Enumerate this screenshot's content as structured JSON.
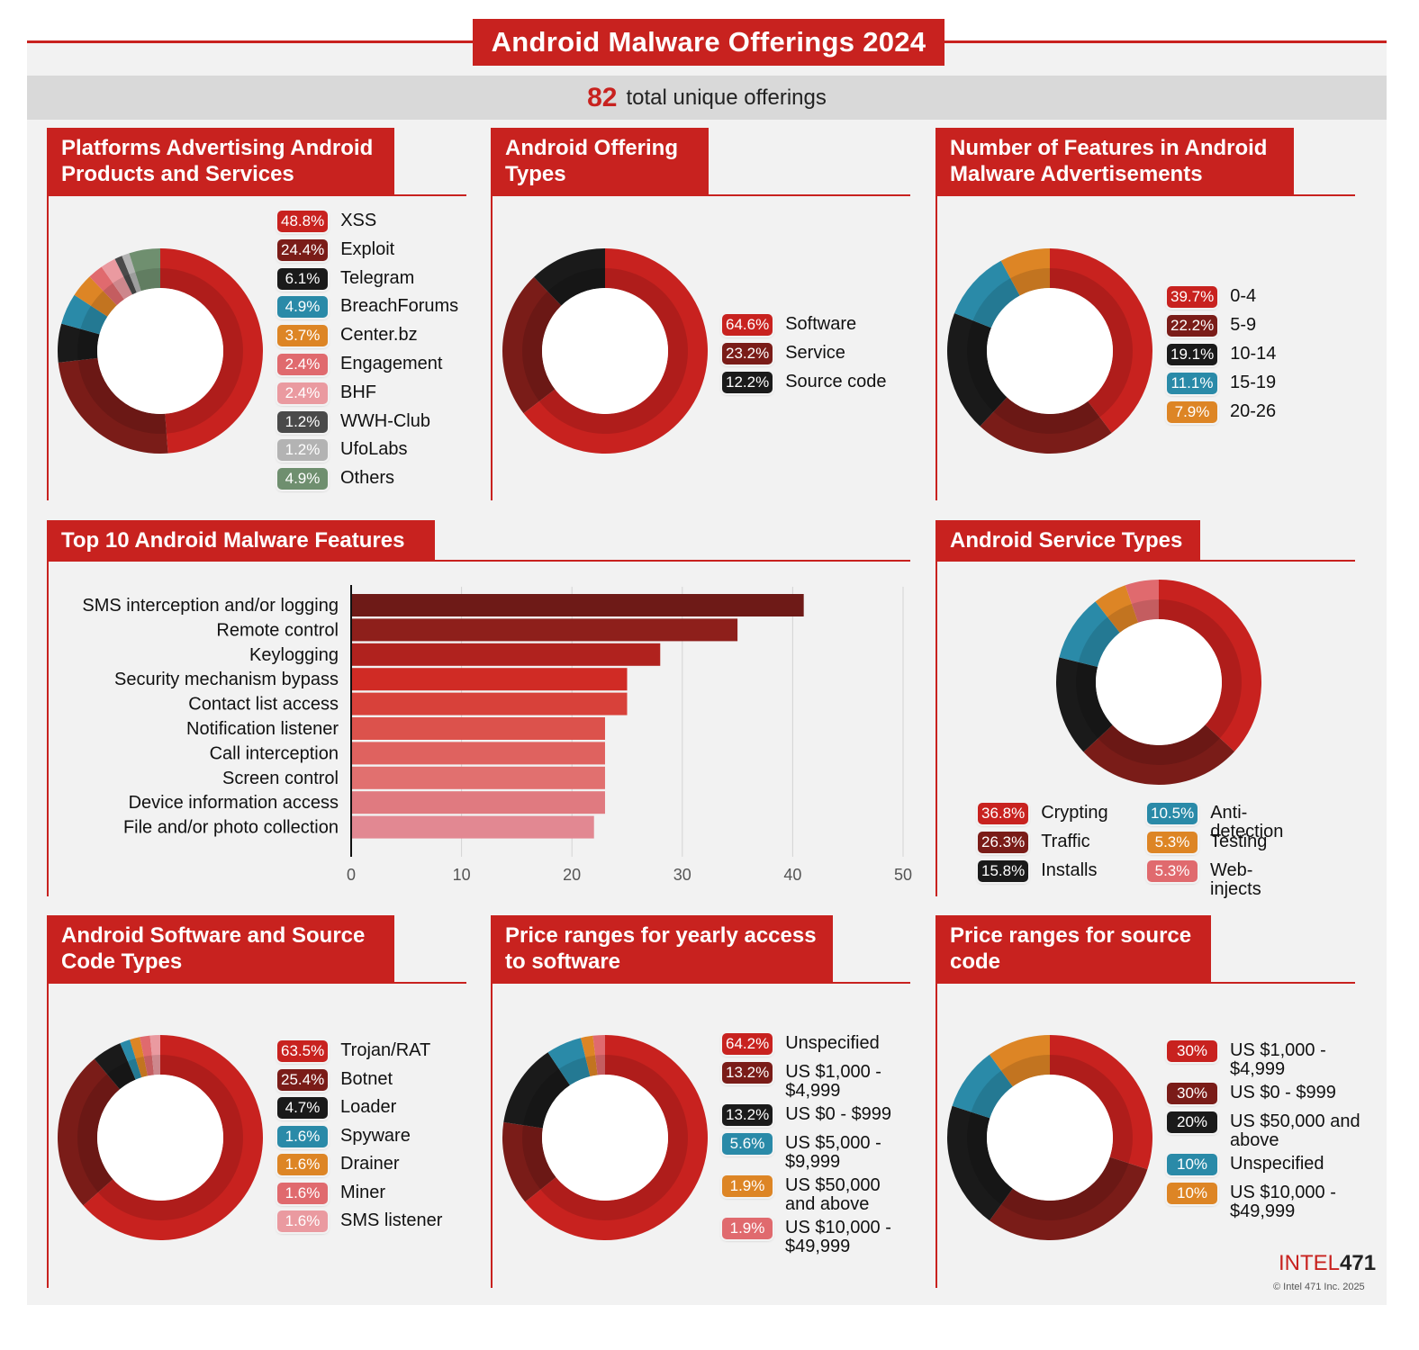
{
  "title": "Android Malware Offerings 2024",
  "total": {
    "number": "82",
    "label": "total unique offerings"
  },
  "colors": {
    "red": "#c8221f",
    "dark_red": "#7a1c18",
    "black": "#1a1a1a",
    "teal": "#2a8aa8",
    "orange": "#dd8525",
    "pink": "#e06a6e",
    "light_pink": "#ea9aa0",
    "dark_gray": "#4a4a4a",
    "light_gray": "#b3b3b3",
    "green": "#6f8f6f"
  },
  "panels": {
    "platforms": {
      "title_line1": "Platforms Advertising Android",
      "title_line2": "Products and Services",
      "items": [
        {
          "pct": "48.8%",
          "value": 48.8,
          "label": "XSS",
          "color": "#c8221f"
        },
        {
          "pct": "24.4%",
          "value": 24.4,
          "label": "Exploit",
          "color": "#7a1c18"
        },
        {
          "pct": "6.1%",
          "value": 6.1,
          "label": "Telegram",
          "color": "#1a1a1a"
        },
        {
          "pct": "4.9%",
          "value": 4.9,
          "label": "BreachForums",
          "color": "#2a8aa8"
        },
        {
          "pct": "3.7%",
          "value": 3.7,
          "label": "Center.bz",
          "color": "#dd8525"
        },
        {
          "pct": "2.4%",
          "value": 2.4,
          "label": "Engagement",
          "color": "#e06a6e"
        },
        {
          "pct": "2.4%",
          "value": 2.4,
          "label": "BHF",
          "color": "#ea9aa0"
        },
        {
          "pct": "1.2%",
          "value": 1.2,
          "label": "WWH-Club",
          "color": "#4a4a4a"
        },
        {
          "pct": "1.2%",
          "value": 1.2,
          "label": "UfoLabs",
          "color": "#b3b3b3"
        },
        {
          "pct": "4.9%",
          "value": 4.9,
          "label": "Others",
          "color": "#6f8f6f"
        }
      ]
    },
    "offering_types": {
      "title_line1": "Android Offering",
      "title_line2": "Types",
      "items": [
        {
          "pct": "64.6%",
          "value": 64.6,
          "label": "Software",
          "color": "#c8221f"
        },
        {
          "pct": "23.2%",
          "value": 23.2,
          "label": "Service",
          "color": "#7a1c18"
        },
        {
          "pct": "12.2%",
          "value": 12.2,
          "label": "Source code",
          "color": "#1a1a1a"
        }
      ]
    },
    "num_features": {
      "title_line1": "Number of Features in Android",
      "title_line2": "Malware Advertisements",
      "items": [
        {
          "pct": "39.7%",
          "value": 39.7,
          "label": "0-4",
          "color": "#c8221f"
        },
        {
          "pct": "22.2%",
          "value": 22.2,
          "label": "5-9",
          "color": "#7a1c18"
        },
        {
          "pct": "19.1%",
          "value": 19.1,
          "label": "10-14",
          "color": "#1a1a1a"
        },
        {
          "pct": "11.1%",
          "value": 11.1,
          "label": "15-19",
          "color": "#2a8aa8"
        },
        {
          "pct": "7.9%",
          "value": 7.9,
          "label": "20-26",
          "color": "#dd8525"
        }
      ]
    },
    "service_types": {
      "title_line1": "Android Service Types",
      "items": [
        {
          "pct": "36.8%",
          "value": 36.8,
          "label": "Crypting",
          "color": "#c8221f"
        },
        {
          "pct": "26.3%",
          "value": 26.3,
          "label": "Traffic",
          "color": "#7a1c18"
        },
        {
          "pct": "15.8%",
          "value": 15.8,
          "label": "Installs",
          "color": "#1a1a1a"
        },
        {
          "pct": "10.5%",
          "value": 10.5,
          "label": "Anti-detection",
          "color": "#2a8aa8"
        },
        {
          "pct": "5.3%",
          "value": 5.3,
          "label": "Testing",
          "color": "#dd8525"
        },
        {
          "pct": "5.3%",
          "value": 5.3,
          "label": "Web-injects",
          "color": "#e06a6e"
        }
      ]
    },
    "software_types": {
      "title_line1": "Android Software and Source",
      "title_line2": "Code Types",
      "items": [
        {
          "pct": "63.5%",
          "value": 63.5,
          "label": "Trojan/RAT",
          "color": "#c8221f"
        },
        {
          "pct": "25.4%",
          "value": 25.4,
          "label": "Botnet",
          "color": "#7a1c18"
        },
        {
          "pct": "4.7%",
          "value": 4.7,
          "label": "Loader",
          "color": "#1a1a1a"
        },
        {
          "pct": "1.6%",
          "value": 1.6,
          "label": "Spyware",
          "color": "#2a8aa8"
        },
        {
          "pct": "1.6%",
          "value": 1.6,
          "label": "Drainer",
          "color": "#dd8525"
        },
        {
          "pct": "1.6%",
          "value": 1.6,
          "label": "Miner",
          "color": "#e06a6e"
        },
        {
          "pct": "1.6%",
          "value": 1.6,
          "label": "SMS listener",
          "color": "#ea9aa0"
        }
      ]
    },
    "price_software": {
      "title_line1": "Price ranges for yearly access",
      "title_line2": "to software",
      "items": [
        {
          "pct": "64.2%",
          "value": 64.2,
          "label": "Unspecified",
          "color": "#c8221f"
        },
        {
          "pct": "13.2%",
          "value": 13.2,
          "label": "US $1,000 -",
          "label2": "$4,999",
          "color": "#7a1c18"
        },
        {
          "pct": "13.2%",
          "value": 13.2,
          "label": "US $0 - $999",
          "color": "#1a1a1a"
        },
        {
          "pct": "5.6%",
          "value": 5.6,
          "label": "US $5,000 -",
          "label2": "$9,999",
          "color": "#2a8aa8"
        },
        {
          "pct": "1.9%",
          "value": 1.9,
          "label": "US $50,000",
          "label2": "and above",
          "color": "#dd8525"
        },
        {
          "pct": "1.9%",
          "value": 1.9,
          "label": "US $10,000 -",
          "label2": "$49,999",
          "color": "#e06a6e"
        }
      ]
    },
    "price_source": {
      "title_line1": "Price ranges for source",
      "title_line2": "code",
      "items": [
        {
          "pct": "30%",
          "value": 30,
          "label": "US $1,000 -",
          "label2": "$4,999",
          "color": "#c8221f"
        },
        {
          "pct": "30%",
          "value": 30,
          "label": "US $0 - $999",
          "color": "#7a1c18"
        },
        {
          "pct": "20%",
          "value": 20,
          "label": "US $50,000 and",
          "label2": "above",
          "color": "#1a1a1a"
        },
        {
          "pct": "10%",
          "value": 10,
          "label": "Unspecified",
          "color": "#2a8aa8"
        },
        {
          "pct": "10%",
          "value": 10,
          "label": "US $10,000 -",
          "label2": "$49,999",
          "color": "#dd8525"
        }
      ]
    },
    "top_features": {
      "title_line1": "Top 10 Android Malware Features"
    }
  },
  "chart_data": [
    {
      "type": "bar",
      "orientation": "horizontal",
      "title": "Top 10 Android Malware Features",
      "categories": [
        "SMS interception and/or logging",
        "Remote control",
        "Keylogging",
        "Security mechanism bypass",
        "Contact list access",
        "Notification listener",
        "Call interception",
        "Screen control",
        "Device information access",
        "File and/or photo collection"
      ],
      "values": [
        41,
        35,
        28,
        25,
        25,
        23,
        23,
        23,
        23,
        22
      ],
      "bar_colors": [
        "#6e1a17",
        "#8e1f1b",
        "#b0221e",
        "#d02b25",
        "#d8413a",
        "#dc524c",
        "#df625f",
        "#e1706f",
        "#e07a80",
        "#e28892"
      ],
      "xlim": [
        0,
        50
      ],
      "xticks": [
        0,
        10,
        20,
        30,
        40,
        50
      ],
      "grid": true
    },
    {
      "type": "pie",
      "donut": true,
      "title": "Platforms Advertising Android Products and Services",
      "ref": "platforms"
    },
    {
      "type": "pie",
      "donut": true,
      "title": "Android Offering Types",
      "ref": "offering_types"
    },
    {
      "type": "pie",
      "donut": true,
      "title": "Number of Features in Android Malware Advertisements",
      "ref": "num_features"
    },
    {
      "type": "pie",
      "donut": true,
      "title": "Android Service Types",
      "ref": "service_types"
    },
    {
      "type": "pie",
      "donut": true,
      "title": "Android Software and Source Code Types",
      "ref": "software_types"
    },
    {
      "type": "pie",
      "donut": true,
      "title": "Price ranges for yearly access to software",
      "ref": "price_software"
    },
    {
      "type": "pie",
      "donut": true,
      "title": "Price ranges for source code",
      "ref": "price_source"
    }
  ],
  "logo": {
    "brand": "INTEL",
    "number": "471",
    "copyright": "© Intel 471 Inc. 2025"
  }
}
